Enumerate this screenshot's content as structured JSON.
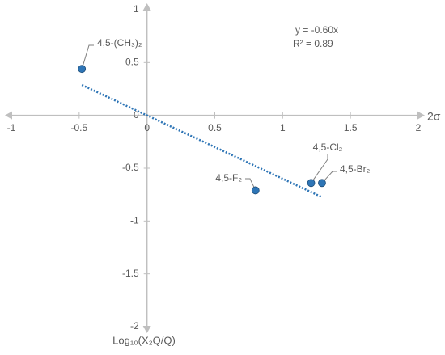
{
  "chart_data": {
    "type": "scatter",
    "x_label": "2σ",
    "y_label": "Log₁₀(X₂Q/Q)",
    "equation": "y = -0.60x",
    "r_squared": "R² = 0.89",
    "trendline_slope": -0.6,
    "point_labels": [
      "4,5-(CH₃)₂",
      "4,5-F₂",
      "4,5-Cl₂",
      "4,5-Br₂"
    ],
    "x": [
      -0.48,
      0.8,
      1.21,
      1.29
    ],
    "values": [
      0.44,
      -0.71,
      -0.64,
      -0.64
    ],
    "color": "#2e75b6",
    "trend_color": "#2e75b6",
    "xlim": [
      -1,
      2
    ],
    "ylim": [
      -2,
      1
    ],
    "xticks": [
      -1,
      -0.5,
      0,
      0.5,
      1,
      1.5,
      2
    ],
    "yticks": [
      -2,
      -1.5,
      -1,
      -0.5,
      0,
      0.5,
      1
    ]
  }
}
